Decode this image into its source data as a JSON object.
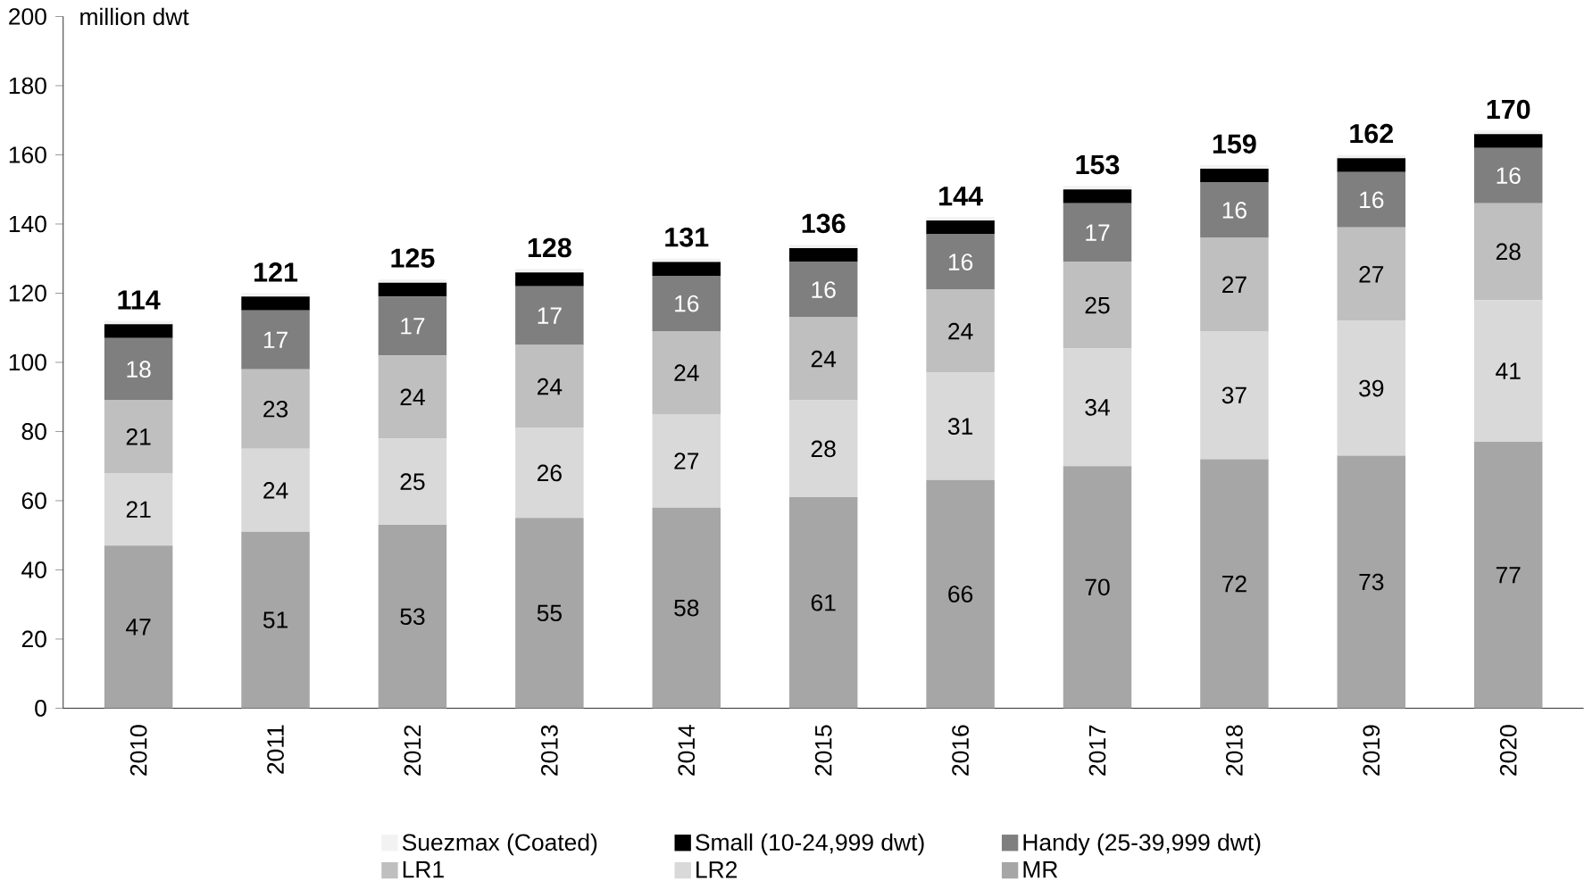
{
  "chart_data": {
    "type": "bar",
    "stacked": true,
    "ylabel": "million dwt",
    "categories": [
      "2010",
      "2011",
      "2012",
      "2013",
      "2014",
      "2015",
      "2016",
      "2017",
      "2018",
      "2019",
      "2020"
    ],
    "series": [
      {
        "name": "MR",
        "color": "#a6a6a6",
        "values": [
          47,
          51,
          53,
          55,
          58,
          61,
          66,
          70,
          72,
          73,
          77
        ],
        "value_labels": [
          "47",
          "51",
          "53",
          "55",
          "58",
          "61",
          "66",
          "70",
          "72",
          "73",
          "77"
        ]
      },
      {
        "name": "LR2",
        "color": "#d9d9d9",
        "values": [
          21,
          24,
          25,
          26,
          27,
          28,
          31,
          34,
          37,
          39,
          41
        ],
        "value_labels": [
          "21",
          "24",
          "25",
          "26",
          "27",
          "28",
          "31",
          "34",
          "37",
          "39",
          "41"
        ]
      },
      {
        "name": "LR1",
        "color": "#bfbfbf",
        "values": [
          21,
          23,
          24,
          24,
          24,
          24,
          24,
          25,
          27,
          27,
          28
        ],
        "value_labels": [
          "21",
          "23",
          "24",
          "24",
          "24",
          "24",
          "24",
          "25",
          "27",
          "27",
          "28"
        ]
      },
      {
        "name": "Handy (25-39,999 dwt)",
        "color": "#7f7f7f",
        "values": [
          18,
          17,
          17,
          17,
          16,
          16,
          16,
          17,
          16,
          16,
          16
        ],
        "value_labels": [
          "18",
          "17",
          "17",
          "17",
          "16",
          "16",
          "16",
          "17",
          "16",
          "16",
          "16"
        ]
      },
      {
        "name": "Small (10-24,999 dwt)",
        "color": "#000000",
        "values": [
          4,
          4,
          4,
          4,
          4,
          4,
          4,
          4,
          4,
          4,
          4
        ]
      },
      {
        "name": "Suezmax (Coated)",
        "color": "#f2f2f2",
        "values": [
          1,
          1,
          1,
          1,
          1,
          1,
          1,
          1,
          1,
          1,
          1
        ]
      }
    ],
    "totals": [
      "114",
      "121",
      "125",
      "128",
      "131",
      "136",
      "144",
      "153",
      "159",
      "162",
      "170"
    ],
    "ylim": [
      0,
      200
    ],
    "yticks": [
      0,
      20,
      40,
      60,
      80,
      100,
      120,
      140,
      160,
      180,
      200
    ],
    "grid": false,
    "legend": "bottom"
  }
}
